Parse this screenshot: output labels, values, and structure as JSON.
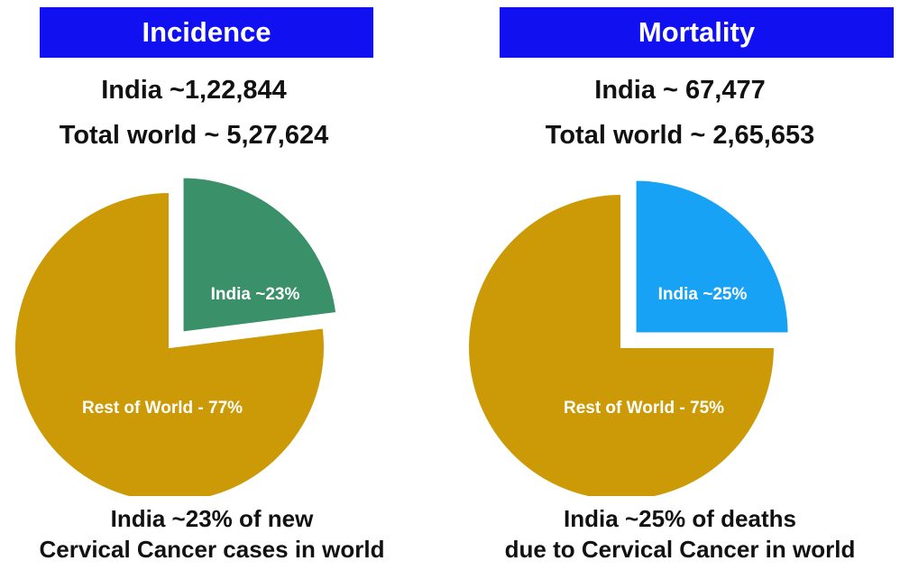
{
  "chart_data": [
    {
      "type": "pie",
      "title": "Incidence",
      "subtitle_lines": [
        "India ~1,22,844",
        "Total world ~ 5,27,624"
      ],
      "slices": [
        {
          "label": "India ~23%",
          "value": 23,
          "color": "#3a9068",
          "exploded": true
        },
        {
          "label": "Rest of World - 77%",
          "value": 77,
          "color": "#cc9a06",
          "exploded": false
        }
      ],
      "caption_lines": [
        "India ~23% of new",
        "Cervical Cancer cases in world"
      ]
    },
    {
      "type": "pie",
      "title": "Mortality",
      "subtitle_lines": [
        "India ~ 67,477",
        "Total world ~ 2,65,653"
      ],
      "slices": [
        {
          "label": "India ~25%",
          "value": 25,
          "color": "#17a2f5",
          "exploded": true
        },
        {
          "label": "Rest of World - 75%",
          "value": 75,
          "color": "#cc9a06",
          "exploded": false
        }
      ],
      "caption_lines": [
        "India ~25% of deaths",
        "due to Cervical Cancer in world"
      ]
    }
  ],
  "colors": {
    "header_bg": "#1010f0",
    "header_text": "#ffffff"
  }
}
